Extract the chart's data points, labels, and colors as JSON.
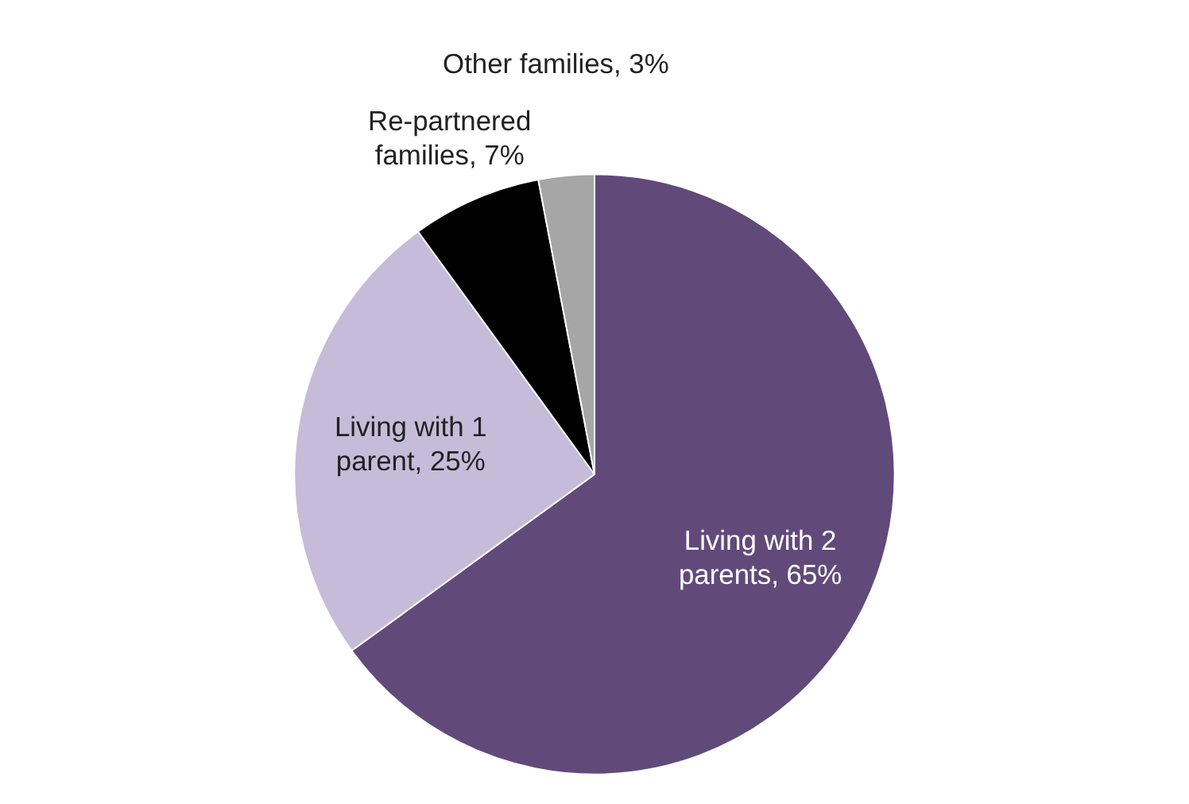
{
  "chart_data": {
    "type": "pie",
    "categories": [
      "Living with 2 parents",
      "Living with 1 parent",
      "Re-partnered families",
      "Other families"
    ],
    "values": [
      65,
      25,
      7,
      3
    ],
    "colors": [
      "#614a7a",
      "#c6bcd9",
      "#000000",
      "#a6a6a6"
    ],
    "value_labels": [
      "65%",
      "25%",
      "7%",
      "3%"
    ]
  }
}
